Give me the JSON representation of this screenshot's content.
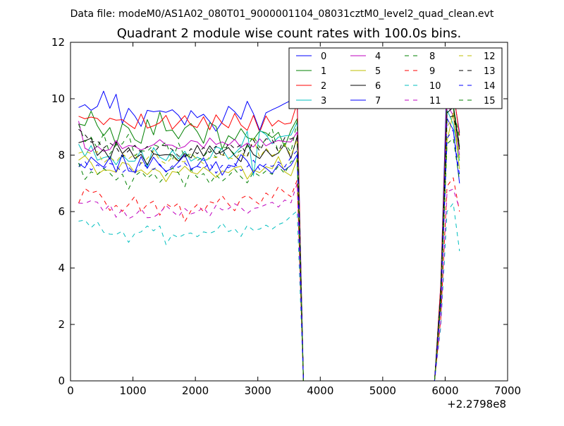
{
  "chart_data": {
    "type": "line",
    "suptitle": "Data file: modeM0/AS1A02_080T01_9000001104_08031cztM0_level2_quad_clean.evt",
    "title": "Quadrant 2 module wise count rates with 100.0s bins.",
    "xlabel": "",
    "ylabel": "",
    "x_offset_label": "+2.2798e8",
    "xlim": [
      0,
      7000
    ],
    "ylim": [
      0,
      12
    ],
    "xticks": [
      "0",
      "1000",
      "2000",
      "3000",
      "4000",
      "5000",
      "6000",
      "7000"
    ],
    "yticks": [
      "0",
      "2",
      "4",
      "6",
      "8",
      "10",
      "12"
    ],
    "grid": false,
    "legend_position": "top-right",
    "legend_columns": 4,
    "x": [
      130,
      230,
      330,
      430,
      530,
      630,
      730,
      830,
      930,
      1030,
      1130,
      1230,
      1330,
      1430,
      1530,
      1630,
      1730,
      1830,
      1930,
      2030,
      2130,
      2230,
      2330,
      2430,
      2530,
      2630,
      2730,
      2830,
      2930,
      3030,
      3130,
      3230,
      3330,
      3430,
      3530,
      3630,
      3730,
      3830,
      3930,
      4030,
      4130,
      4230,
      4330,
      4430,
      4530,
      4630,
      4730,
      4830,
      4930,
      5030,
      5130,
      5230,
      5330,
      5430,
      5530,
      5630,
      5730,
      5830,
      5930,
      6030,
      6130,
      6230
    ],
    "series": [
      {
        "name": "0",
        "color": "#0000ff",
        "dash": "solid",
        "values": [
          9.69,
          9.79,
          9.59,
          9.73,
          10.27,
          9.66,
          10.16,
          9.12,
          9.66,
          9.39,
          9.02,
          9.59,
          9.54,
          9.57,
          9.52,
          9.61,
          9.41,
          9.07,
          9.58,
          9.33,
          9.45,
          9.19,
          8.85,
          9.18,
          9.73,
          9.54,
          9.27,
          9.91,
          9.47,
          8.88,
          9.5,
          9.61,
          9.71,
          9.83,
          9.94,
          10.04,
          0.0,
          0.0,
          0.0,
          0.0,
          0.0,
          0.0,
          0.0,
          0.0,
          0.0,
          0.0,
          0.0,
          0.0,
          0.0,
          0.0,
          0.0,
          0.0,
          0.0,
          0.0,
          0.0,
          0.0,
          0.0,
          0.0,
          3.4,
          10.93,
          10.2,
          8.8
        ]
      },
      {
        "name": "1",
        "color": "#008000",
        "dash": "solid",
        "values": [
          9.11,
          9.05,
          9.56,
          9.04,
          8.69,
          8.98,
          8.35,
          9.12,
          8.96,
          8.55,
          8.42,
          9.26,
          8.72,
          9.53,
          8.86,
          8.89,
          8.58,
          8.96,
          9.12,
          8.83,
          8.42,
          9.15,
          9.02,
          8.22,
          8.69,
          8.54,
          8.94,
          8.62,
          8.55,
          8.86,
          8.79,
          8.62,
          8.81,
          8.3,
          8.88,
          9.29,
          0.0,
          0.0,
          0.0,
          0.0,
          0.0,
          0.0,
          0.0,
          0.0,
          0.0,
          0.0,
          0.0,
          0.0,
          0.0,
          0.0,
          0.0,
          0.0,
          0.0,
          0.0,
          0.0,
          0.0,
          0.0,
          0.0,
          3.2,
          10.3,
          9.8,
          8.3
        ]
      },
      {
        "name": "2",
        "color": "#ff0000",
        "dash": "solid",
        "values": [
          9.38,
          9.29,
          9.35,
          9.3,
          9.08,
          9.31,
          9.24,
          9.26,
          9.09,
          8.94,
          9.46,
          8.96,
          9.04,
          9.15,
          9.41,
          8.92,
          9.16,
          9.4,
          9.06,
          8.98,
          9.36,
          8.9,
          9.43,
          9.13,
          8.97,
          9.48,
          9.07,
          8.88,
          9.41,
          8.82,
          9.39,
          9.03,
          9.23,
          9.1,
          9.14,
          9.85,
          0.0,
          0.0,
          0.0,
          0.0,
          0.0,
          0.0,
          0.0,
          0.0,
          0.0,
          0.0,
          0.0,
          0.0,
          0.0,
          0.0,
          0.0,
          0.0,
          0.0,
          0.0,
          0.0,
          0.0,
          0.0,
          0.0,
          3.4,
          10.2,
          10.3,
          8.7
        ]
      },
      {
        "name": "3",
        "color": "#00bfbf",
        "dash": "solid",
        "values": [
          8.39,
          7.96,
          8.34,
          7.82,
          7.91,
          7.97,
          7.66,
          8.01,
          7.78,
          7.79,
          8.18,
          7.59,
          8.27,
          7.93,
          7.81,
          8.17,
          7.87,
          8.14,
          7.79,
          7.93,
          7.81,
          7.88,
          8.3,
          8.21,
          7.86,
          8.06,
          8.29,
          8.85,
          7.27,
          8.88,
          8.73,
          8.4,
          8.64,
          8.68,
          8.71,
          9.17,
          0.0,
          0.0,
          0.0,
          0.0,
          0.0,
          0.0,
          0.0,
          0.0,
          0.0,
          0.0,
          0.0,
          0.0,
          0.0,
          0.0,
          0.0,
          0.0,
          0.0,
          0.0,
          0.0,
          0.0,
          0.0,
          0.0,
          3.0,
          9.6,
          9.1,
          7.8
        ]
      },
      {
        "name": "4",
        "color": "#bf00bf",
        "dash": "solid",
        "values": [
          9.21,
          8.25,
          8.13,
          8.32,
          8.14,
          8.2,
          8.52,
          8.23,
          8.34,
          8.31,
          8.18,
          8.28,
          8.37,
          8.55,
          8.37,
          8.35,
          8.23,
          8.31,
          8.52,
          8.47,
          8.25,
          8.61,
          8.38,
          8.47,
          8.35,
          8.56,
          8.27,
          8.43,
          8.29,
          8.58,
          8.33,
          8.45,
          8.52,
          8.48,
          8.47,
          8.82,
          0.0,
          0.0,
          0.0,
          0.0,
          0.0,
          0.0,
          0.0,
          0.0,
          0.0,
          0.0,
          0.0,
          0.0,
          0.0,
          0.0,
          0.0,
          0.0,
          0.0,
          0.0,
          0.0,
          0.0,
          0.0,
          0.0,
          3.1,
          9.8,
          9.4,
          8.0
        ]
      },
      {
        "name": "5",
        "color": "#bfbf00",
        "dash": "solid",
        "values": [
          7.82,
          7.98,
          7.73,
          7.32,
          7.47,
          7.47,
          7.39,
          7.74,
          7.68,
          7.38,
          7.48,
          7.31,
          7.53,
          7.41,
          7.06,
          7.42,
          7.38,
          7.61,
          7.4,
          7.33,
          7.57,
          7.42,
          7.21,
          7.44,
          7.38,
          7.55,
          7.61,
          7.15,
          7.47,
          7.38,
          7.59,
          7.52,
          7.95,
          7.41,
          7.27,
          7.86,
          0.0,
          0.0,
          0.0,
          0.0,
          0.0,
          0.0,
          0.0,
          0.0,
          0.0,
          0.0,
          0.0,
          0.0,
          0.0,
          0.0,
          0.0,
          0.0,
          0.0,
          0.0,
          0.0,
          0.0,
          0.0,
          0.0,
          2.8,
          8.5,
          9.5,
          7.5
        ]
      },
      {
        "name": "6",
        "color": "#000000",
        "dash": "solid",
        "values": [
          8.44,
          8.51,
          8.6,
          7.99,
          8.21,
          7.86,
          8.47,
          8.06,
          8.27,
          7.88,
          8.03,
          7.66,
          8.05,
          7.99,
          8.02,
          8.01,
          7.79,
          8.06,
          7.9,
          8.35,
          7.96,
          8.33,
          8.04,
          8.12,
          8.27,
          7.98,
          7.77,
          8.39,
          8.02,
          7.88,
          8.2,
          7.95,
          8.08,
          8.39,
          7.89,
          8.66,
          0.0,
          0.0,
          0.0,
          0.0,
          0.0,
          0.0,
          0.0,
          0.0,
          0.0,
          0.0,
          0.0,
          0.0,
          0.0,
          0.0,
          0.0,
          0.0,
          0.0,
          0.0,
          0.0,
          0.0,
          0.0,
          0.0,
          3.1,
          9.5,
          9.7,
          8.2
        ]
      },
      {
        "name": "7",
        "color": "#0000ff",
        "dash": "solid",
        "values": [
          7.71,
          7.55,
          7.93,
          7.73,
          7.57,
          7.92,
          7.4,
          8.04,
          7.44,
          7.4,
          7.95,
          7.53,
          7.93,
          7.64,
          7.43,
          7.53,
          7.76,
          8.01,
          7.51,
          7.61,
          7.91,
          7.45,
          7.77,
          7.29,
          7.65,
          7.59,
          8.02,
          7.79,
          7.38,
          7.67,
          7.54,
          7.35,
          7.68,
          7.47,
          7.64,
          8.02,
          0.0,
          0.0,
          0.0,
          0.0,
          0.0,
          0.0,
          0.0,
          0.0,
          0.0,
          0.0,
          0.0,
          0.0,
          0.0,
          0.0,
          0.0,
          0.0,
          0.0,
          0.0,
          0.0,
          0.0,
          0.0,
          0.0,
          2.8,
          9.3,
          8.9,
          7.0
        ]
      },
      {
        "name": "8",
        "color": "#008000",
        "dash": "dashed",
        "values": [
          9.1,
          8.48,
          8.64,
          8.24,
          8.77,
          8.04,
          8.36,
          8.4,
          8.74,
          7.98,
          8.16,
          8.13,
          8.37,
          8.29,
          8.46,
          7.82,
          8.43,
          7.93,
          8.09,
          7.81,
          7.94,
          8.23,
          7.91,
          8.29,
          8.24,
          8.03,
          8.16,
          8.29,
          8.68,
          8.27,
          8.58,
          8.93,
          8.06,
          8.42,
          8.11,
          9.2,
          0.0,
          0.0,
          0.0,
          0.0,
          0.0,
          0.0,
          0.0,
          0.0,
          0.0,
          0.0,
          0.0,
          0.0,
          0.0,
          0.0,
          0.0,
          0.0,
          0.0,
          0.0,
          0.0,
          0.0,
          0.0,
          0.0,
          3.2,
          9.8,
          9.7,
          8.6
        ]
      },
      {
        "name": "9",
        "color": "#ff0000",
        "dash": "dashed",
        "values": [
          6.3,
          6.82,
          6.66,
          6.73,
          6.43,
          6.04,
          6.22,
          6.01,
          6.25,
          6.54,
          6.0,
          6.25,
          6.37,
          5.87,
          6.28,
          6.14,
          6.3,
          5.64,
          6.03,
          6.25,
          6.0,
          6.35,
          6.28,
          6.56,
          6.26,
          6.03,
          6.47,
          6.58,
          6.41,
          6.25,
          6.66,
          6.49,
          6.88,
          6.68,
          6.53,
          7.12,
          0.0,
          0.0,
          0.0,
          0.0,
          0.0,
          0.0,
          0.0,
          0.0,
          0.0,
          0.0,
          0.0,
          0.0,
          0.0,
          0.0,
          0.0,
          0.0,
          0.0,
          0.0,
          0.0,
          0.0,
          0.0,
          0.0,
          2.2,
          6.9,
          7.2,
          6.0
        ]
      },
      {
        "name": "10",
        "color": "#00bfbf",
        "dash": "dashed",
        "values": [
          5.66,
          5.7,
          5.43,
          5.64,
          5.27,
          5.2,
          5.19,
          5.31,
          4.91,
          5.22,
          5.28,
          5.49,
          5.32,
          5.49,
          4.83,
          5.19,
          5.08,
          5.2,
          5.24,
          5.11,
          5.28,
          5.23,
          5.32,
          5.6,
          5.29,
          5.39,
          5.12,
          5.51,
          5.34,
          5.38,
          5.52,
          5.38,
          5.54,
          5.63,
          5.84,
          6.02,
          0.0,
          0.0,
          0.0,
          0.0,
          0.0,
          0.0,
          0.0,
          0.0,
          0.0,
          0.0,
          0.0,
          0.0,
          0.0,
          0.0,
          0.0,
          0.0,
          0.0,
          0.0,
          0.0,
          0.0,
          0.0,
          0.0,
          1.9,
          6.0,
          6.3,
          4.6
        ]
      },
      {
        "name": "11",
        "color": "#bf00bf",
        "dash": "dashed",
        "values": [
          6.3,
          6.29,
          6.39,
          6.33,
          6.01,
          6.25,
          5.8,
          6.08,
          5.75,
          5.86,
          6.1,
          5.78,
          5.8,
          5.95,
          6.22,
          6.01,
          5.83,
          6.11,
          5.92,
          5.99,
          6.15,
          5.84,
          6.22,
          6.06,
          6.1,
          6.28,
          6.14,
          5.93,
          6.11,
          6.15,
          6.25,
          6.33,
          6.16,
          6.41,
          6.31,
          7.0,
          0.0,
          0.0,
          0.0,
          0.0,
          0.0,
          0.0,
          0.0,
          0.0,
          0.0,
          0.0,
          0.0,
          0.0,
          0.0,
          0.0,
          0.0,
          0.0,
          0.0,
          0.0,
          0.0,
          0.0,
          0.0,
          0.0,
          2.1,
          6.7,
          6.8,
          6.1
        ]
      },
      {
        "name": "12",
        "color": "#bfbf00",
        "dash": "dashed",
        "values": [
          8.07,
          8.14,
          8.06,
          8.13,
          7.72,
          7.92,
          7.76,
          8.05,
          7.87,
          8.04,
          7.7,
          7.88,
          8.16,
          7.82,
          7.69,
          7.94,
          7.78,
          7.77,
          8.06,
          7.86,
          7.7,
          7.94,
          7.91,
          8.03,
          7.92,
          7.85,
          8.09,
          7.91,
          8.6,
          7.91,
          8.25,
          7.98,
          8.11,
          8.38,
          7.98,
          8.56,
          0.0,
          0.0,
          0.0,
          0.0,
          0.0,
          0.0,
          0.0,
          0.0,
          0.0,
          0.0,
          0.0,
          0.0,
          0.0,
          0.0,
          0.0,
          0.0,
          0.0,
          0.0,
          0.0,
          0.0,
          0.0,
          0.0,
          2.9,
          9.0,
          9.4,
          7.9
        ]
      },
      {
        "name": "13",
        "color": "#000000",
        "dash": "dashed",
        "values": [
          8.92,
          8.73,
          8.46,
          8.51,
          8.25,
          8.43,
          8.28,
          7.94,
          8.16,
          8.35,
          8.1,
          8.31,
          8.06,
          8.35,
          8.33,
          8.2,
          7.97,
          7.94,
          8.23,
          8.05,
          8.27,
          8.09,
          8.32,
          7.93,
          8.43,
          8.23,
          8.37,
          7.97,
          8.54,
          8.14,
          8.58,
          8.55,
          8.12,
          8.62,
          8.57,
          8.7,
          0.0,
          0.0,
          0.0,
          0.0,
          0.0,
          0.0,
          0.0,
          0.0,
          0.0,
          0.0,
          0.0,
          0.0,
          0.0,
          0.0,
          0.0,
          0.0,
          0.0,
          0.0,
          0.0,
          0.0,
          0.0,
          0.0,
          3.0,
          9.3,
          9.4,
          8.4
        ]
      },
      {
        "name": "14",
        "color": "#0000ff",
        "dash": "dashed",
        "values": [
          7.59,
          7.78,
          7.47,
          7.66,
          7.52,
          7.71,
          7.63,
          7.38,
          7.57,
          7.35,
          7.74,
          7.56,
          7.49,
          7.68,
          7.4,
          7.62,
          7.57,
          7.73,
          7.47,
          7.6,
          7.53,
          7.72,
          7.36,
          7.64,
          7.55,
          7.7,
          7.45,
          7.59,
          7.82,
          7.49,
          7.68,
          7.6,
          7.76,
          7.58,
          7.93,
          8.16,
          0.0,
          0.0,
          0.0,
          0.0,
          0.0,
          0.0,
          0.0,
          0.0,
          0.0,
          0.0,
          0.0,
          0.0,
          0.0,
          0.0,
          0.0,
          0.0,
          0.0,
          0.0,
          0.0,
          0.0,
          0.0,
          0.0,
          2.7,
          8.6,
          8.9,
          7.3
        ]
      },
      {
        "name": "15",
        "color": "#008000",
        "dash": "dashed",
        "values": [
          7.72,
          7.14,
          7.41,
          7.31,
          7.53,
          7.36,
          7.12,
          7.33,
          6.8,
          7.26,
          7.43,
          7.18,
          7.36,
          7.04,
          7.29,
          7.55,
          7.37,
          6.88,
          7.49,
          7.21,
          7.35,
          6.99,
          7.3,
          7.08,
          7.26,
          7.5,
          7.23,
          7.02,
          7.4,
          7.26,
          7.44,
          7.32,
          7.61,
          7.35,
          7.77,
          7.88,
          0.0,
          0.0,
          0.0,
          0.0,
          0.0,
          0.0,
          0.0,
          0.0,
          0.0,
          0.0,
          0.0,
          0.0,
          0.0,
          0.0,
          0.0,
          0.0,
          0.0,
          0.0,
          0.0,
          0.0,
          0.0,
          0.0,
          2.7,
          8.4,
          8.6,
          7.1
        ]
      }
    ]
  }
}
